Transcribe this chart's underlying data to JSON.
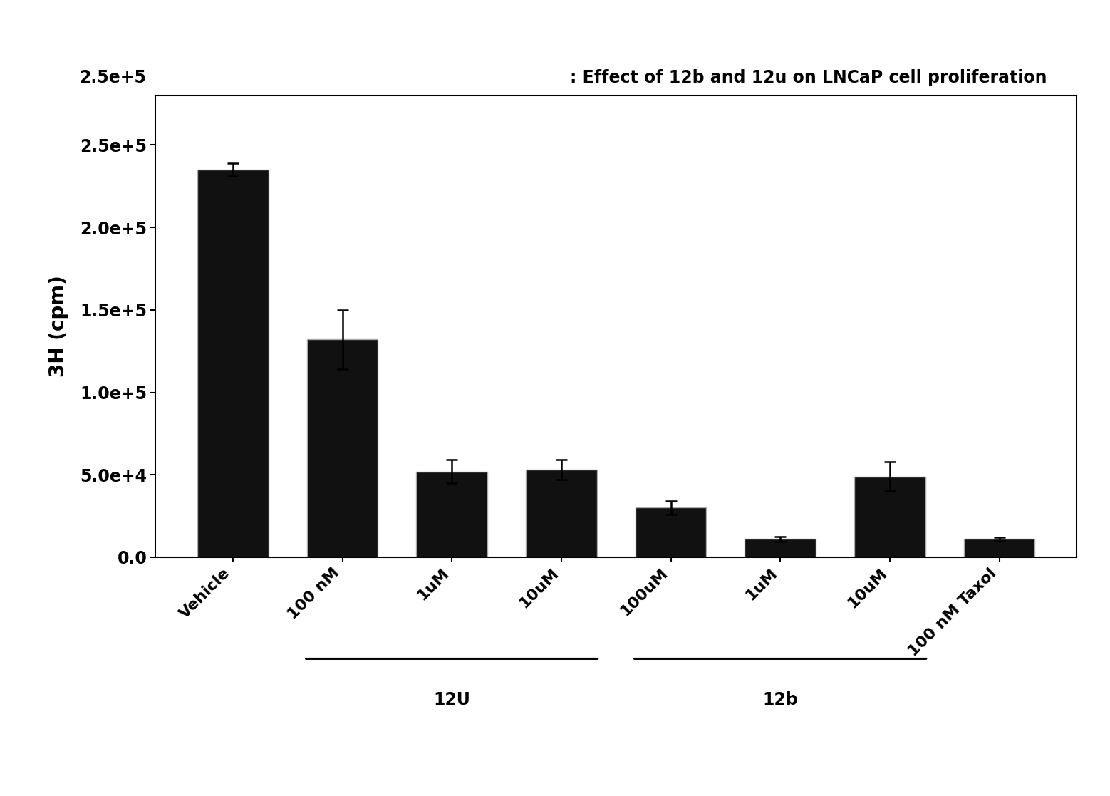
{
  "title": ": Effect of 12b and 12u on LNCaP cell proliferation",
  "ylabel": "3H (cpm)",
  "categories": [
    "Vehicle",
    "100 nM",
    "1uM",
    "10uM",
    "100uM",
    "1uM",
    "10uM",
    "100 nM Taxol"
  ],
  "values": [
    235000,
    132000,
    52000,
    53000,
    30000,
    11000,
    49000,
    11000
  ],
  "errors": [
    4000,
    18000,
    7000,
    6000,
    4000,
    1500,
    9000,
    1000
  ],
  "bar_color": "#111111",
  "bar_edgecolor": "#aaaaaa",
  "ylim": [
    0,
    280000
  ],
  "yticks": [
    0.0,
    50000,
    100000,
    150000,
    200000,
    250000
  ],
  "ytick_labels": [
    "0.0",
    "5.0e+4",
    "1.0e+5",
    "1.5e+5",
    "2.0e+5",
    "2.5e+5"
  ],
  "outside_label": "2.5e+5",
  "background_color": "#ffffff",
  "figsize": [
    15.58,
    11.17
  ],
  "dpi": 100
}
